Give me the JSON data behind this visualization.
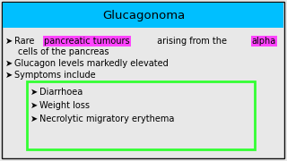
{
  "title": "Glucagonoma",
  "title_bg": "#00BFFF",
  "title_color": "#000000",
  "bg_color": "#E8E8E8",
  "outer_border_color": "#111111",
  "bullet_symbol": "➤",
  "line1_parts": [
    {
      "text": "Rare ",
      "highlight": null
    },
    {
      "text": "pancreatic tumours",
      "highlight": "#FF44FF"
    },
    {
      "text": " arising from the ",
      "highlight": null
    },
    {
      "text": "alpha",
      "highlight": "#FF44FF"
    }
  ],
  "line1b": "  cells of the pancreas",
  "line2": "Glucagon levels markedly elevated",
  "line3": "Symptoms include",
  "sub_bullets": [
    "Diarrhoea",
    "Weight loss",
    "Necrolytic migratory erythema"
  ],
  "sub_box_color": "#33FF33",
  "font_size_title": 9.5,
  "font_size_body": 7.0,
  "font_size_bullet": 7.0
}
